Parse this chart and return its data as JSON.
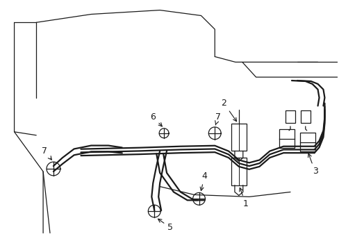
{
  "background_color": "#ffffff",
  "line_color": "#1a1a1a",
  "lw_thin": 0.9,
  "lw_hose": 1.6,
  "label_fontsize": 9,
  "fig_width": 4.89,
  "fig_height": 3.6,
  "dpi": 100
}
